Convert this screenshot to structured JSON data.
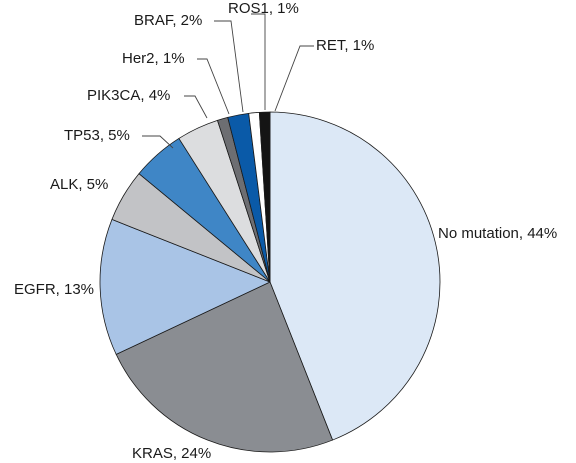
{
  "chart_data": {
    "type": "pie",
    "title": "",
    "slices": [
      {
        "name": "No mutation",
        "value": 44,
        "label": "No mutation, 44%",
        "color": "#dce8f6"
      },
      {
        "name": "KRAS",
        "value": 24,
        "label": "KRAS, 24%",
        "color": "#8a8d92"
      },
      {
        "name": "EGFR",
        "value": 13,
        "label": "EGFR, 13%",
        "color": "#a9c4e6"
      },
      {
        "name": "ALK",
        "value": 5,
        "label": "ALK, 5%",
        "color": "#c2c3c6"
      },
      {
        "name": "TP53",
        "value": 5,
        "label": "TP53, 5%",
        "color": "#3f86c6"
      },
      {
        "name": "PIK3CA",
        "value": 4,
        "label": "PIK3CA, 4%",
        "color": "#dcdddf"
      },
      {
        "name": "Her2",
        "value": 1,
        "label": "Her2, 1%",
        "color": "#6d6e72"
      },
      {
        "name": "BRAF",
        "value": 2,
        "label": "BRAF, 2%",
        "color": "#0a5aa8"
      },
      {
        "name": "ROS1",
        "value": 1,
        "label": "ROS1, 1%",
        "color": "#ffffff"
      },
      {
        "name": "RET",
        "value": 1,
        "label": "RET, 1%",
        "color": "#141414"
      }
    ]
  }
}
